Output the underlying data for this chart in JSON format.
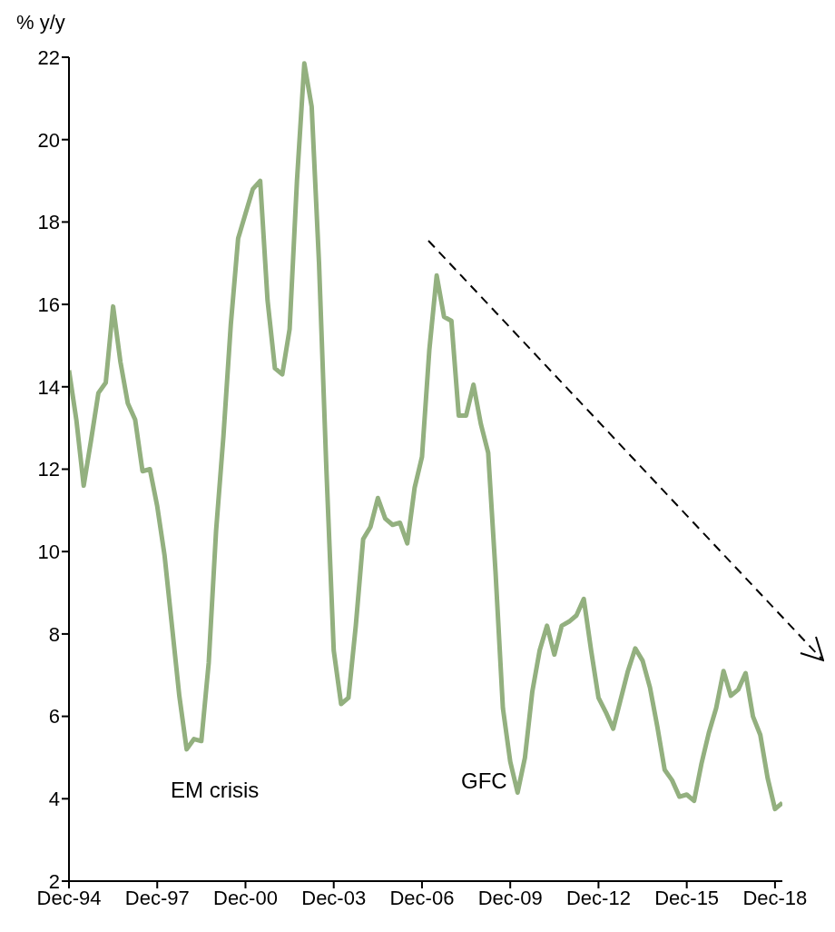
{
  "chart_data": {
    "type": "line",
    "ylabel": "% y/y",
    "categories": [
      "Dec-94",
      null,
      null,
      null,
      null,
      null,
      null,
      null,
      null,
      null,
      null,
      null,
      "Dec-97",
      null,
      null,
      null,
      null,
      null,
      null,
      null,
      null,
      null,
      null,
      null,
      "Dec-00",
      null,
      null,
      null,
      null,
      null,
      null,
      null,
      null,
      null,
      null,
      null,
      "Dec-03",
      null,
      null,
      null,
      null,
      null,
      null,
      null,
      null,
      null,
      null,
      null,
      "Dec-06",
      null,
      null,
      null,
      null,
      null,
      null,
      null,
      null,
      null,
      null,
      null,
      "Dec-09",
      null,
      null,
      null,
      null,
      null,
      null,
      null,
      null,
      null,
      null,
      null,
      "Dec-12",
      null,
      null,
      null,
      null,
      null,
      null,
      null,
      null,
      null,
      null,
      null,
      "Dec-15",
      null,
      null,
      null,
      null,
      null,
      null,
      null,
      null,
      null,
      null,
      null,
      "Dec-18",
      null
    ],
    "series": [
      {
        "color": "#93b07f",
        "values": [
          14.4,
          13.2,
          11.6,
          12.7,
          13.85,
          14.1,
          15.95,
          14.6,
          13.6,
          13.2,
          11.95,
          12.0,
          11.1,
          9.9,
          8.2,
          6.5,
          5.2,
          5.45,
          5.4,
          7.3,
          10.5,
          12.8,
          15.5,
          17.6,
          18.2,
          18.8,
          19.0,
          16.1,
          14.45,
          14.3,
          15.4,
          19.0,
          21.85,
          20.8,
          17.0,
          12.0,
          7.6,
          6.3,
          6.45,
          8.2,
          10.3,
          10.6,
          11.3,
          10.8,
          10.65,
          10.7,
          10.2,
          11.55,
          12.3,
          14.9,
          16.7,
          15.7,
          15.6,
          13.3,
          13.3,
          14.05,
          13.1,
          12.4,
          9.5,
          6.2,
          4.9,
          4.15,
          5.0,
          6.6,
          7.6,
          8.2,
          7.5,
          8.2,
          8.3,
          8.45,
          8.85,
          7.6,
          6.45,
          6.1,
          5.7,
          6.4,
          7.1,
          7.65,
          7.35,
          6.7,
          5.75,
          4.7,
          4.45,
          4.05,
          4.1,
          3.95,
          4.85,
          5.6,
          6.2,
          7.1,
          6.5,
          6.65,
          7.05,
          6.0,
          5.55,
          4.5,
          3.75,
          3.9
        ]
      }
    ],
    "ylim": [
      2,
      22
    ],
    "yticks": [
      2,
      4,
      6,
      8,
      10,
      12,
      14,
      16,
      18,
      20,
      22
    ],
    "grid": false,
    "legend": false,
    "annotations": [
      "EM crisis",
      "GFC"
    ]
  }
}
